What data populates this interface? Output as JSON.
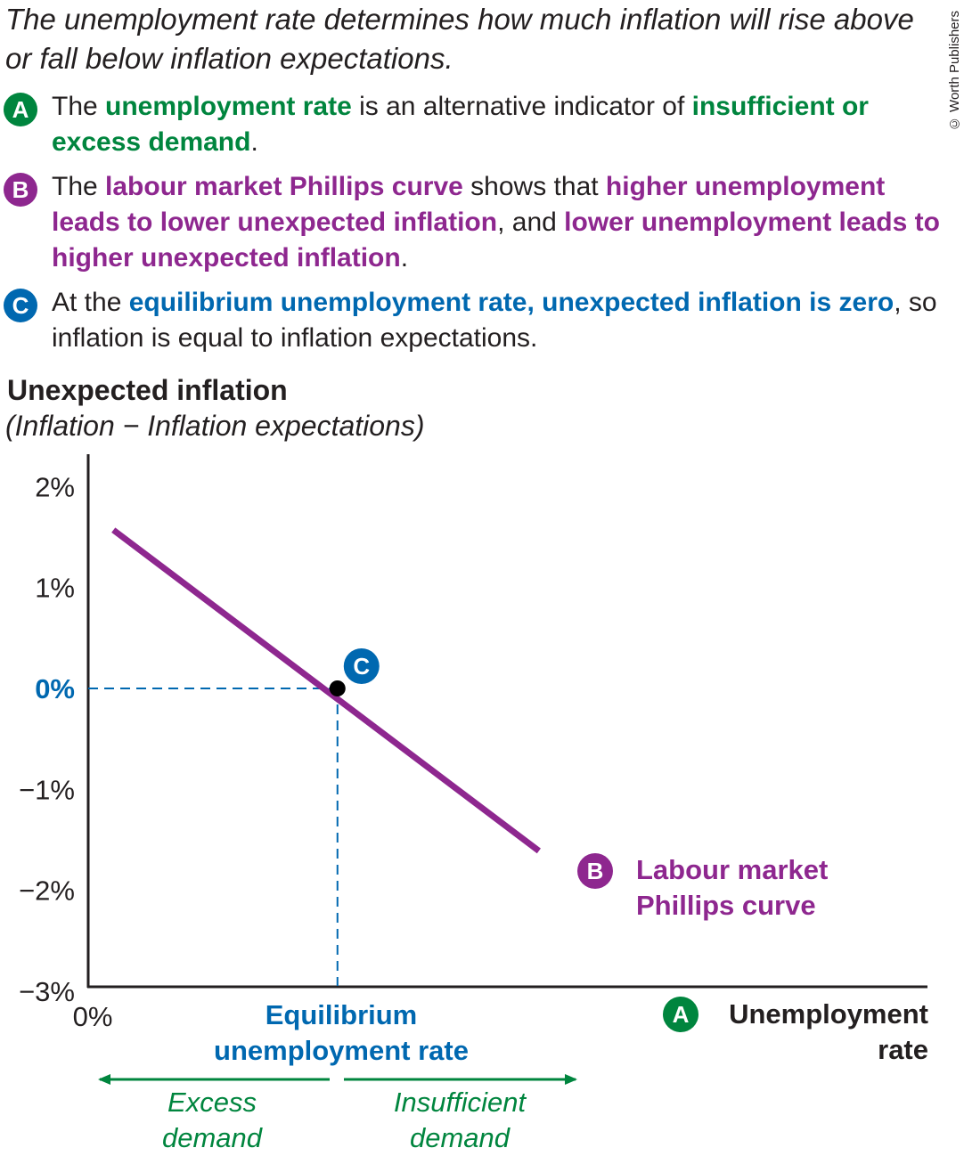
{
  "headline": "The unemployment rate determines how much inflation will rise above or fall below inflation expectations.",
  "copyright": "© Worth Publishers",
  "points": [
    {
      "badge": "A",
      "color": "#00853e",
      "parts": [
        {
          "text": "The ",
          "hl": false
        },
        {
          "text": "unemployment rate",
          "hl": true
        },
        {
          "text": " is an alternative indicator of ",
          "hl": false
        },
        {
          "text": "insufficient or excess demand",
          "hl": true
        },
        {
          "text": ".",
          "hl": false
        }
      ]
    },
    {
      "badge": "B",
      "color": "#8e278f",
      "parts": [
        {
          "text": "The ",
          "hl": false
        },
        {
          "text": "labour market Phillips curve",
          "hl": true
        },
        {
          "text": " shows that ",
          "hl": false
        },
        {
          "text": "higher unemployment leads to lower unexpected inflation",
          "hl": true
        },
        {
          "text": ", and ",
          "hl": false
        },
        {
          "text": "lower unemployment leads to higher unexpected inflation",
          "hl": true
        },
        {
          "text": ".",
          "hl": false
        }
      ]
    },
    {
      "badge": "C",
      "color": "#0068b0",
      "parts": [
        {
          "text": "At the ",
          "hl": false
        },
        {
          "text": "equilibrium unemployment rate, unexpected inflation is zero",
          "hl": true
        },
        {
          "text": ", so inflation is equal to inflation expectations.",
          "hl": false
        }
      ]
    }
  ],
  "chart_data": {
    "type": "line",
    "ytitle": "Unexpected inflation",
    "ysubtitle": "(Inflation − Inflation expectations)",
    "yticks": [
      {
        "value": 2,
        "label": "2%"
      },
      {
        "value": 1,
        "label": "1%"
      },
      {
        "value": 0,
        "label": "0%"
      },
      {
        "value": -1,
        "label": "−1%"
      },
      {
        "value": -2,
        "label": "−2%"
      },
      {
        "value": -3,
        "label": "−3%"
      }
    ],
    "ylim": [
      -3,
      2.3
    ],
    "xorigin_label": "0%",
    "xlabel": "Unemployment rate",
    "xlabel_badge": "A",
    "series": [
      {
        "name": "Labour market Phillips curve",
        "badge": "B",
        "color": "#8e278f",
        "points": [
          [
            0.03,
            1.57
          ],
          [
            0.537,
            -1.61
          ]
        ]
      }
    ],
    "equilibrium": {
      "x": 0.297,
      "y": 0,
      "badge": "C",
      "label": "Equilibrium unemployment rate",
      "color": "#0068b0"
    },
    "regions": [
      {
        "label": "Excess demand",
        "direction": "left",
        "color": "#00853e"
      },
      {
        "label": "Insufficient demand",
        "direction": "right",
        "color": "#00853e"
      }
    ]
  }
}
